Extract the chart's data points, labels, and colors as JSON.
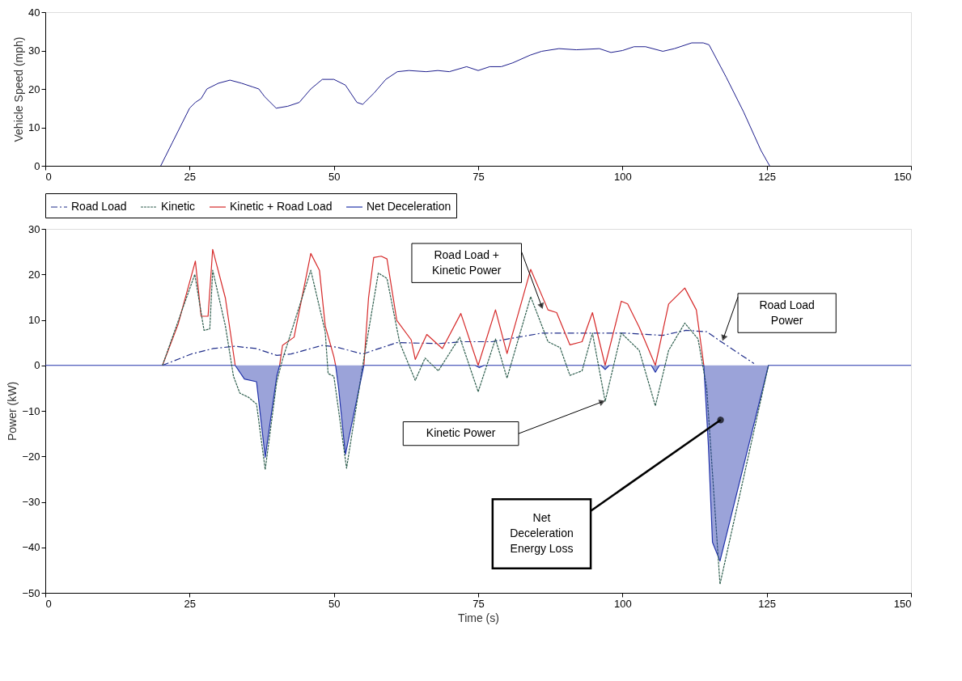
{
  "chart_data": [
    {
      "type": "line",
      "ylabel": "Vehicle Speed (mph)",
      "xlim": [
        0,
        150
      ],
      "xticks": [
        0,
        25,
        50,
        75,
        100,
        125,
        150
      ],
      "ylim": [
        0,
        40
      ],
      "yticks": [
        0,
        10,
        20,
        30,
        40
      ],
      "grid": false,
      "legend": false,
      "series": [
        {
          "color": "#1c1c8c",
          "line_style": "solid",
          "x": [
            20,
            22,
            24,
            25,
            26,
            27,
            28,
            30,
            32,
            34,
            36,
            37,
            38,
            40,
            42,
            44,
            46,
            48,
            50,
            52,
            54,
            55,
            57,
            59,
            61,
            63,
            66,
            68,
            70,
            73,
            75,
            77,
            79,
            81,
            84,
            86,
            89,
            92,
            96,
            98,
            100,
            102,
            104,
            107,
            109,
            112,
            114,
            115,
            118,
            121,
            124,
            125.5
          ],
          "values": [
            0,
            6,
            12,
            15,
            16.5,
            17.5,
            20,
            21.5,
            22.3,
            21.5,
            20.5,
            20,
            18,
            15,
            15.5,
            16.5,
            20,
            22.5,
            22.5,
            21,
            16.5,
            16,
            19,
            22.5,
            24.5,
            24.8,
            24.5,
            24.8,
            24.5,
            25.8,
            24.8,
            25.8,
            25.8,
            26.8,
            28.8,
            29.8,
            30.5,
            30.2,
            30.5,
            29.5,
            30,
            31,
            31,
            29.8,
            30.5,
            32,
            32,
            31.5,
            23,
            14,
            4,
            0
          ]
        }
      ]
    },
    {
      "type": "line",
      "xlabel": "Time (s)",
      "ylabel": "Power (kW)",
      "xlim": [
        0,
        150
      ],
      "xticks": [
        0,
        25,
        50,
        75,
        100,
        125,
        150
      ],
      "ylim": [
        -50,
        30
      ],
      "yticks": [
        -50,
        -40,
        -30,
        -20,
        -10,
        0,
        10,
        20,
        30
      ],
      "grid": false,
      "legend": "top",
      "series": [
        {
          "name": "Road Load",
          "color": "#1f2d8a",
          "line_style": "dotted",
          "x": [
            20.3,
            25.3,
            29.1,
            32.8,
            36.5,
            40.1,
            42.6,
            48.0,
            50.5,
            55.0,
            60.9,
            68.3,
            72.4,
            77.4,
            86.1,
            100.4,
            107.0,
            111.0,
            114.6,
            117.1,
            122.8
          ],
          "values": [
            0,
            2.5,
            3.7,
            4.2,
            3.7,
            2.2,
            2.5,
            4.4,
            4.0,
            2.5,
            5.0,
            4.8,
            5.2,
            5.2,
            7.1,
            7.1,
            6.6,
            7.7,
            7.4,
            5.2,
            0.4
          ]
        },
        {
          "name": "Kinetic",
          "color": "#2f5f4f",
          "line_style": "dashed",
          "x": [
            20.3,
            25.9,
            27.5,
            28.5,
            29.0,
            31.2,
            32.6,
            33.7,
            35.2,
            36.6,
            38.1,
            40.1,
            41.1,
            46.0,
            48.5,
            49.0,
            50.0,
            52.2,
            55.0,
            57.7,
            59.2,
            61.4,
            64.1,
            65.8,
            68.1,
            71.8,
            75.0,
            78.0,
            80.0,
            84.1,
            87.1,
            89.2,
            90.9,
            93.0,
            94.8,
            97.0,
            99.8,
            102.9,
            105.7,
            108.0,
            110.8,
            113.1,
            114.6,
            116.9,
            125.3
          ],
          "values": [
            0,
            20.0,
            7.7,
            8.0,
            20.9,
            8.7,
            -2.4,
            -6.1,
            -7.0,
            -8.5,
            -22.9,
            -3.6,
            1.3,
            20.9,
            7.4,
            -1.8,
            -2.4,
            -22.6,
            0,
            20.3,
            19.1,
            5.0,
            -3.3,
            1.6,
            -1.2,
            6.2,
            -5.8,
            5.8,
            -2.8,
            15.1,
            5.2,
            3.9,
            -2.2,
            -1.2,
            7.1,
            -7.9,
            7.1,
            3.3,
            -8.9,
            3.3,
            9.3,
            5.8,
            -5.0,
            -48.1,
            0
          ]
        },
        {
          "name": "Kinetic + Road Load",
          "color": "#d62a2a",
          "line_style": "solid",
          "x": [
            20.3,
            23,
            26.0,
            27.0,
            28.2,
            29.0,
            31.2,
            32.9,
            36.5,
            40.6,
            41.1,
            43.1,
            46.0,
            47.5,
            48.5,
            50.0,
            50.3,
            52.5,
            55.2,
            56.0,
            56.9,
            58.2,
            59.2,
            60.9,
            63.4,
            64.1,
            66.1,
            68.8,
            72.0,
            75.0,
            78.0,
            80.0,
            84.1,
            87.1,
            88.6,
            90.9,
            93.0,
            94.8,
            97.0,
            99.8,
            100.9,
            102.9,
            105.7,
            108.0,
            110.8,
            112.8,
            114.1
          ],
          "values": [
            0,
            9,
            22.9,
            10.8,
            10.8,
            25.5,
            14.8,
            0,
            null,
            0,
            4.4,
            6.2,
            24.6,
            20.9,
            8.7,
            1.9,
            0,
            null,
            0,
            14.8,
            23.7,
            24.0,
            23.4,
            9.9,
            5.6,
            1.3,
            6.8,
            3.7,
            11.4,
            0,
            12.2,
            2.6,
            21.1,
            12.2,
            11.6,
            4.5,
            5.2,
            11.6,
            0,
            14.1,
            13.5,
            8.4,
            0,
            13.5,
            17.0,
            12.2,
            0
          ]
        },
        {
          "name": "Net Deceleration",
          "type": "area",
          "color": "#2233aa",
          "line_style": "solid",
          "x": [
            0,
            32.9,
            34.5,
            36.6,
            38.1,
            40.1,
            40.6,
            50.3,
            50.8,
            52.0,
            55.2,
            74.5,
            75.2,
            76.0,
            96.3,
            97.0,
            97.7,
            105.0,
            105.7,
            106.4,
            114.1,
            114.9,
            115.6,
            116.9,
            125.3,
            150
          ],
          "values": [
            0,
            0,
            -3.0,
            -3.6,
            -20.2,
            -2.4,
            0,
            0,
            -4.8,
            -19.6,
            0,
            0,
            -0.5,
            0,
            0,
            -0.9,
            0,
            0,
            -1.5,
            0,
            0,
            -17.8,
            -38.9,
            -43.0,
            0,
            0
          ]
        }
      ],
      "annotations": [
        "Road Load +\nKinetic Power",
        "Road Load\nPower",
        "Kinetic Power",
        "Net\nDeceleration\nEnergy Loss"
      ]
    }
  ]
}
